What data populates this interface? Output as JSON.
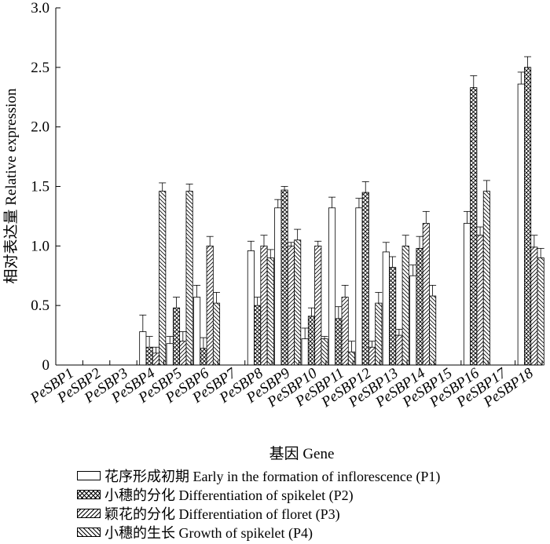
{
  "chart_data": {
    "type": "bar",
    "title": "",
    "xlabel": "基因 Gene",
    "ylabel": "相对表达量 Relative expression",
    "ylim": [
      0,
      3.0
    ],
    "yticks": [
      "0",
      "0.5",
      "1.0",
      "1.5",
      "2.0",
      "2.5",
      "3.0"
    ],
    "categories": [
      "PeSBP1",
      "PeSBP2",
      "PeSBP3",
      "PeSBP4",
      "PeSBP5",
      "PeSBP6",
      "PeSBP7",
      "PeSBP8",
      "PeSBP9",
      "PeSBP10",
      "PeSBP11",
      "PeSBP12",
      "PeSBP13",
      "PeSBP14",
      "PeSBP15",
      "PeSBP16",
      "PeSBP17",
      "PeSBP18"
    ],
    "series": [
      {
        "name": "花序形成初期  Early in the formation of inflorescence (P1)",
        "pattern": "open",
        "values": [
          0,
          0,
          0,
          0.28,
          0.18,
          0.57,
          0,
          0.96,
          1.32,
          0.22,
          1.32,
          1.32,
          0.95,
          0.75,
          0,
          1.19,
          0,
          2.36
        ],
        "errors": [
          0,
          0,
          0,
          0.14,
          0.06,
          0.1,
          0,
          0.08,
          0.07,
          0.09,
          0.09,
          0.08,
          0.08,
          0.09,
          0,
          0.1,
          0,
          0.1
        ]
      },
      {
        "name": "小穗的分化  Differentiation of spikelet (P2)",
        "pattern": "crosshatch",
        "values": [
          0,
          0,
          0,
          0.15,
          0.48,
          0.14,
          0,
          0.5,
          1.47,
          0.41,
          0.39,
          1.45,
          0.82,
          0.98,
          0,
          2.33,
          0,
          2.5
        ],
        "errors": [
          0,
          0,
          0,
          0.09,
          0.09,
          0.09,
          0,
          0.07,
          0.03,
          0.07,
          0.1,
          0.09,
          0.09,
          0.1,
          0,
          0.1,
          0,
          0.09
        ]
      },
      {
        "name": "颖花的分化  Differentiation of floret (P3)",
        "pattern": "diag-up",
        "values": [
          0,
          0,
          0,
          0.1,
          0.2,
          1.0,
          0,
          1.0,
          1.0,
          1.0,
          0.57,
          0.15,
          0.25,
          1.19,
          0,
          1.09,
          0,
          0.99
        ],
        "errors": [
          0,
          0,
          0,
          0.05,
          0.08,
          0.08,
          0,
          0.09,
          0.03,
          0.04,
          0.1,
          0.05,
          0.05,
          0.1,
          0,
          0.07,
          0,
          0.1
        ]
      },
      {
        "name": "小穗的生长  Growth of spikelet (P4)",
        "pattern": "diag-down",
        "values": [
          0,
          0,
          0,
          1.46,
          1.46,
          0.52,
          0,
          0.9,
          1.05,
          0.22,
          0.11,
          0.52,
          1.0,
          0.58,
          0,
          1.46,
          0,
          0.9
        ],
        "errors": [
          0,
          0,
          0,
          0.07,
          0.06,
          0.09,
          0,
          0.07,
          0.09,
          0.02,
          0.09,
          0.09,
          0.09,
          0.09,
          0,
          0.09,
          0,
          0.08
        ]
      }
    ]
  }
}
